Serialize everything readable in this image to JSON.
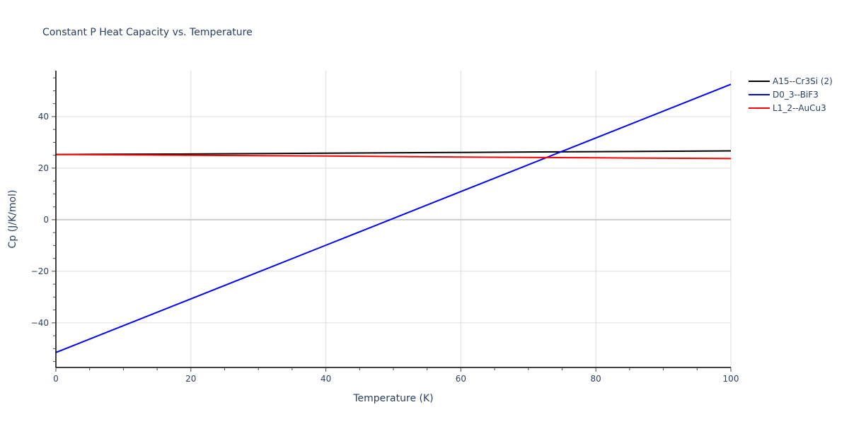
{
  "chart_data": {
    "type": "line",
    "title": "Constant P Heat Capacity vs. Temperature",
    "xlabel": "Temperature (K)",
    "ylabel": "Cp (J/K/mol)",
    "xlim": [
      0,
      100
    ],
    "ylim": [
      -57.3,
      57.8
    ],
    "grid": true,
    "legend_position": "top-right-outside",
    "x_ticks": [
      0,
      20,
      40,
      60,
      80,
      100
    ],
    "x_tick_labels": [
      "0",
      "20",
      "40",
      "60",
      "80",
      "100"
    ],
    "y_ticks": [
      -40,
      -20,
      0,
      20,
      40
    ],
    "y_tick_labels": [
      "−40",
      "−20",
      "0",
      "20",
      "40"
    ],
    "x": [
      0,
      20,
      40,
      60,
      80,
      100
    ],
    "series": [
      {
        "name": "A15--Cr3Si (2)",
        "color": "#000000",
        "values": [
          25.3,
          25.5,
          25.8,
          26.1,
          26.4,
          26.7
        ]
      },
      {
        "name": "D0_3--BiF3",
        "color": "#0000ff",
        "values": [
          -51.5,
          -30.7,
          -9.9,
          10.9,
          31.7,
          52.5
        ]
      },
      {
        "name": "L1_2--AuCu3",
        "color": "#ff0000",
        "values": [
          25.3,
          25.0,
          24.7,
          24.3,
          24.0,
          23.7
        ]
      }
    ]
  }
}
